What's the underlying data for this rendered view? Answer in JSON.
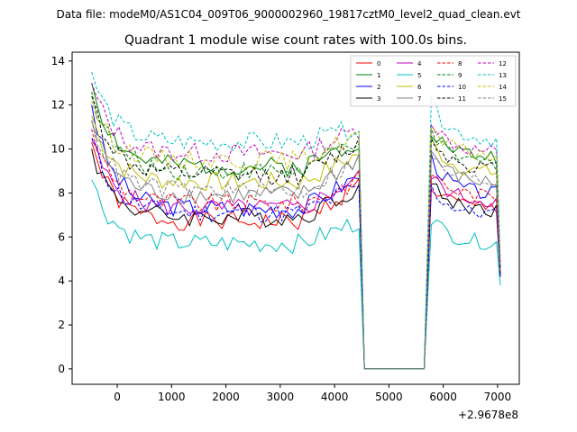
{
  "figure": {
    "suptitle": "Data file: modeM0/AS1C04_009T06_9000002960_19817cztM0_level2_quad_clean.evt"
  },
  "chart_data": {
    "type": "line",
    "title": "Quadrant 1 module wise count rates with 100.0s bins.",
    "xlabel": "",
    "ylabel": "",
    "x_offset_label": "+2.9678e8",
    "xlim": [
      -830,
      7400
    ],
    "ylim": [
      -0.7,
      14.4
    ],
    "x_ticks": [
      0,
      1000,
      2000,
      3000,
      4000,
      5000,
      6000,
      7000
    ],
    "x_tick_labels": [
      "0",
      "1000",
      "2000",
      "3000",
      "4000",
      "5000",
      "6000",
      "7000"
    ],
    "y_ticks": [
      0,
      2,
      4,
      6,
      8,
      10,
      12,
      14
    ],
    "y_tick_labels": [
      "0",
      "2",
      "4",
      "6",
      "8",
      "10",
      "12",
      "14"
    ],
    "grid": false,
    "legend_position": "top-right",
    "legend_columns": 4,
    "gap": {
      "start": 4550,
      "end": 5650
    },
    "x": [
      -470,
      -370,
      -270,
      -170,
      -70,
      30,
      130,
      230,
      330,
      430,
      530,
      630,
      730,
      830,
      930,
      1030,
      1130,
      1230,
      1330,
      1430,
      1530,
      1630,
      1730,
      1830,
      1930,
      2030,
      2130,
      2230,
      2330,
      2430,
      2530,
      2630,
      2730,
      2830,
      2930,
      3030,
      3130,
      3230,
      3330,
      3430,
      3530,
      3630,
      3730,
      3830,
      3930,
      4030,
      4130,
      4230,
      4330,
      4450,
      4550,
      4650,
      4750,
      4850,
      4950,
      5050,
      5150,
      5250,
      5350,
      5450,
      5550,
      5650,
      5780,
      5880,
      5980,
      6080,
      6180,
      6280,
      6380,
      6480,
      6580,
      6680,
      6780,
      6880,
      6980,
      7050
    ],
    "series": [
      {
        "name": "0",
        "color": "#ff0000",
        "dash": "solid",
        "base": 6.7,
        "first": 10.3,
        "tail_end": 8.4,
        "post_start": 8.3,
        "post_level": 7.3,
        "end": 4.2
      },
      {
        "name": "1",
        "color": "#008000",
        "dash": "solid",
        "base": 9.2,
        "first": 13.0,
        "tail_end": 10.4,
        "post_start": 10.9,
        "post_level": 9.6,
        "end": 4.7
      },
      {
        "name": "2",
        "color": "#0000ff",
        "dash": "solid",
        "base": 7.3,
        "first": 12.0,
        "tail_end": 8.8,
        "post_start": 9.6,
        "post_level": 7.9,
        "end": 4.3
      },
      {
        "name": "3",
        "color": "#000000",
        "dash": "solid",
        "base": 6.9,
        "first": 10.0,
        "tail_end": 8.3,
        "post_start": 8.4,
        "post_level": 7.2,
        "end": 4.2
      },
      {
        "name": "4",
        "color": "#bf00bf",
        "dash": "solid",
        "base": 7.3,
        "first": 10.4,
        "tail_end": 8.7,
        "post_start": 8.8,
        "post_level": 7.6,
        "end": 4.3
      },
      {
        "name": "5",
        "color": "#00bfbf",
        "dash": "solid",
        "base": 5.7,
        "first": 8.6,
        "tail_end": 6.7,
        "post_start": 6.9,
        "post_level": 5.7,
        "end": 3.8
      },
      {
        "name": "6",
        "color": "#bfbf00",
        "dash": "solid",
        "base": 8.5,
        "first": 11.5,
        "tail_end": 9.8,
        "post_start": 10.3,
        "post_level": 8.9,
        "end": 4.5
      },
      {
        "name": "7",
        "color": "#808080",
        "dash": "solid",
        "base": 7.9,
        "first": 11.3,
        "tail_end": 9.6,
        "post_start": 9.9,
        "post_level": 8.4,
        "end": 4.4
      },
      {
        "name": "8",
        "color": "#ff0000",
        "dash": "dashed",
        "base": 7.5,
        "first": 10.9,
        "tail_end": 8.6,
        "post_start": 9.0,
        "post_level": 7.8,
        "end": 4.4
      },
      {
        "name": "9",
        "color": "#008000",
        "dash": "dashed",
        "base": 9.0,
        "first": 12.6,
        "tail_end": 10.5,
        "post_start": 10.6,
        "post_level": 9.3,
        "end": 4.7
      },
      {
        "name": "10",
        "color": "#0000ff",
        "dash": "dashed",
        "base": 7.1,
        "first": 10.5,
        "tail_end": 8.3,
        "post_start": 8.2,
        "post_level": 7.0,
        "end": 4.2
      },
      {
        "name": "11",
        "color": "#000000",
        "dash": "dashed",
        "base": 8.8,
        "first": 12.4,
        "tail_end": 10.3,
        "post_start": 10.5,
        "post_level": 9.1,
        "end": 4.6
      },
      {
        "name": "12",
        "color": "#bf00bf",
        "dash": "dashed",
        "base": 9.8,
        "first": 13.0,
        "tail_end": 10.9,
        "post_start": 11.3,
        "post_level": 9.8,
        "end": 4.8
      },
      {
        "name": "13",
        "color": "#00bfbf",
        "dash": "dashed",
        "base": 10.3,
        "first": 13.5,
        "tail_end": 11.0,
        "post_start": 12.0,
        "post_level": 10.4,
        "end": 5.0
      },
      {
        "name": "14",
        "color": "#bfbf00",
        "dash": "dashed",
        "base": 9.5,
        "first": 12.2,
        "tail_end": 10.7,
        "post_start": 10.8,
        "post_level": 9.7,
        "end": 4.7
      },
      {
        "name": "15",
        "color": "#808080",
        "dash": "dashed",
        "base": 8.1,
        "first": 11.3,
        "tail_end": 9.5,
        "post_start": 9.6,
        "post_level": 8.5,
        "end": 4.5
      }
    ]
  }
}
